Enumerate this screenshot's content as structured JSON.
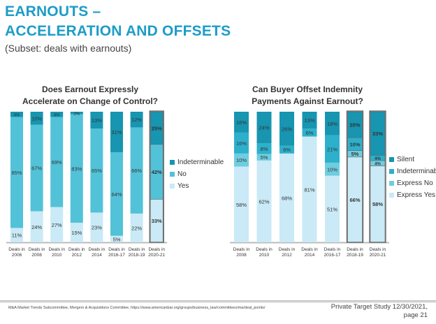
{
  "header": {
    "title_line1": "EARNOUTS –",
    "title_line2": "ACCELERATION AND OFFSETS",
    "subtitle": "(Subset: deals with earnouts)"
  },
  "chart_data": [
    {
      "type": "bar",
      "stacked": true,
      "title": "Does Earnout Expressly Accelerate on Change of Control?",
      "title_line1": "Does Earnout Expressly",
      "title_line2": "Accelerate on Change of Control?",
      "categories": [
        "Deals in 2006",
        "Deals in 2008",
        "Deals in 2010",
        "Deals in 2012",
        "Deals in 2014",
        "Deals in 2016-17",
        "Deals in 2018-19",
        "Deals in 2020-21"
      ],
      "highlighted": [
        "Deals in 2020-21"
      ],
      "legend_position": "right",
      "series": [
        {
          "name": "Yes",
          "color": "#c9eaf6",
          "values": [
            11,
            24,
            27,
            15,
            23,
            5,
            22,
            33
          ]
        },
        {
          "name": "No",
          "color": "#52c2d8",
          "values": [
            85,
            67,
            69,
            83,
            65,
            64,
            66,
            42
          ]
        },
        {
          "name": "Indeterminable",
          "color": "#1795b1",
          "values": [
            4,
            10,
            4,
            2,
            13,
            31,
            12,
            25
          ]
        }
      ],
      "ylim": [
        0,
        100
      ]
    },
    {
      "type": "bar",
      "stacked": true,
      "title": "Can Buyer Offset Indemnity Payments Against Earnout?",
      "title_line1": "Can Buyer Offset Indemnity",
      "title_line2": "Payments Against Earnout?",
      "categories": [
        "Deals in 2008",
        "Deals in 2010",
        "Deals in 2012",
        "Deals in 2014",
        "Deals in 2016-17",
        "Deals in 2018-19",
        "Deals in 2020-21"
      ],
      "highlighted": [
        "Deals in 2018-19",
        "Deals in 2020-21"
      ],
      "legend_position": "right",
      "series": [
        {
          "name": "Express Yes",
          "color": "#c9eaf6",
          "values": [
            58,
            62,
            68,
            81,
            51,
            66,
            58
          ]
        },
        {
          "name": "Express No",
          "color": "#6fcde0",
          "values": [
            10,
            5,
            0,
            0,
            10,
            5,
            4
          ]
        },
        {
          "name": "Indeterminable",
          "color": "#2db0cb",
          "values": [
            16,
            8,
            6,
            6,
            21,
            10,
            4
          ]
        },
        {
          "name": "Silent",
          "color": "#1795b1",
          "values": [
            16,
            24,
            26,
            13,
            18,
            20,
            33
          ]
        }
      ],
      "ylim": [
        0,
        100
      ]
    }
  ],
  "footer": {
    "source": "M&A Market Trends Subcommittee, Mergers & Acquisitions Committee, https://www.americanbar.org/groups/business_law/committees/ma/deal_points/",
    "study": "Private Target Study 12/30/2021,",
    "page": "page 21"
  }
}
